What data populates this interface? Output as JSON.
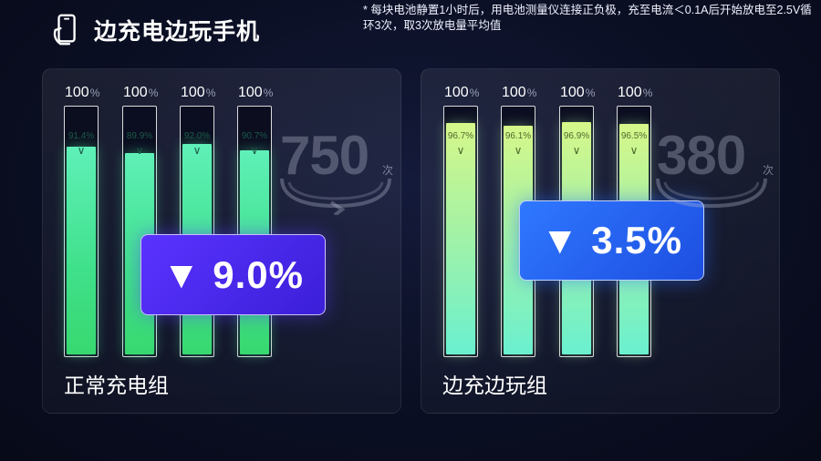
{
  "header": {
    "title": "边充电边玩手机",
    "icon": "phone-in-hand-icon"
  },
  "note": "* 每块电池静置1小时后，用电池测量仪连接正负极，充至电流＜0.1A后开始放电至2.5V循环3次，取3次放电量平均值",
  "chart_data": [
    {
      "type": "bar",
      "group_label": "正常充电组",
      "full_label": "100",
      "full_unit": "%",
      "values": [
        91.4,
        89.9,
        92.0,
        90.7
      ],
      "value_labels": [
        "91.4%",
        "89.9%",
        "92.0%",
        "90.7%"
      ],
      "ylim": [
        0,
        100
      ],
      "cycles": "750",
      "cycles_unit": "次",
      "drop_label": "▼ 9.0%"
    },
    {
      "type": "bar",
      "group_label": "边充边玩组",
      "full_label": "100",
      "full_unit": "%",
      "values": [
        96.7,
        96.1,
        96.9,
        96.5
      ],
      "value_labels": [
        "96.7%",
        "96.1%",
        "96.9%",
        "96.5%"
      ],
      "ylim": [
        0,
        100
      ],
      "cycles": "380",
      "cycles_unit": "次",
      "drop_label": "▼ 3.5%"
    }
  ],
  "colors": {
    "left_fill": "#3fe08a",
    "right_fill": "#a6f2a4",
    "left_badge": "#4a2bf0",
    "right_badge": "#2860f0"
  }
}
